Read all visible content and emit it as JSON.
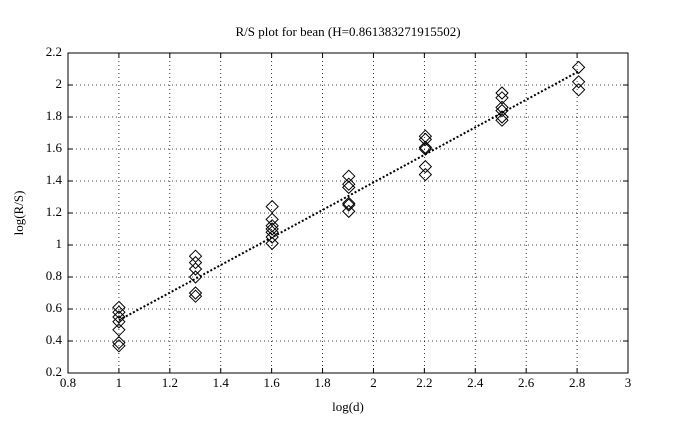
{
  "chart_data": {
    "type": "scatter",
    "title": "R/S plot for bean (H=0.861383271915502)",
    "x_label": "log(d)",
    "y_label": "log(R/S)",
    "xlim": [
      0.8,
      3
    ],
    "ylim": [
      0.2,
      2.2
    ],
    "xticks": [
      0.8,
      1,
      1.2,
      1.4,
      1.6,
      1.8,
      2,
      2.2,
      2.4,
      2.6,
      2.8,
      3
    ],
    "yticks": [
      0.2,
      0.4,
      0.6,
      0.8,
      1,
      1.2,
      1.4,
      1.6,
      1.8,
      2,
      2.2
    ],
    "grid": true,
    "marker": "diamond",
    "series": [
      {
        "color": "#000000",
        "x": [
          1,
          1,
          1,
          1,
          1,
          1,
          1,
          1.301,
          1.301,
          1.301,
          1.301,
          1.301,
          1.301,
          1.602,
          1.602,
          1.602,
          1.602,
          1.602,
          1.602,
          1.602,
          1.903,
          1.903,
          1.903,
          1.903,
          1.903,
          1.903,
          2.204,
          2.204,
          2.204,
          2.204,
          2.204,
          2.204,
          2.505,
          2.505,
          2.505,
          2.505,
          2.505,
          2.505,
          2.806,
          2.806,
          2.806
        ],
        "values": [
          0.61,
          0.58,
          0.55,
          0.52,
          0.47,
          0.39,
          0.37,
          0.93,
          0.89,
          0.85,
          0.8,
          0.7,
          0.68,
          1.24,
          1.16,
          1.12,
          1.1,
          1.08,
          1.05,
          1.01,
          1.43,
          1.38,
          1.36,
          1.26,
          1.25,
          1.21,
          1.68,
          1.66,
          1.61,
          1.6,
          1.49,
          1.44,
          1.95,
          1.92,
          1.86,
          1.84,
          1.8,
          1.78,
          2.11,
          2.02,
          1.97
        ]
      }
    ],
    "fit_line": {
      "color": "#000000",
      "x": [
        1,
        2.806
      ],
      "values": [
        0.53,
        2.085
      ]
    }
  }
}
